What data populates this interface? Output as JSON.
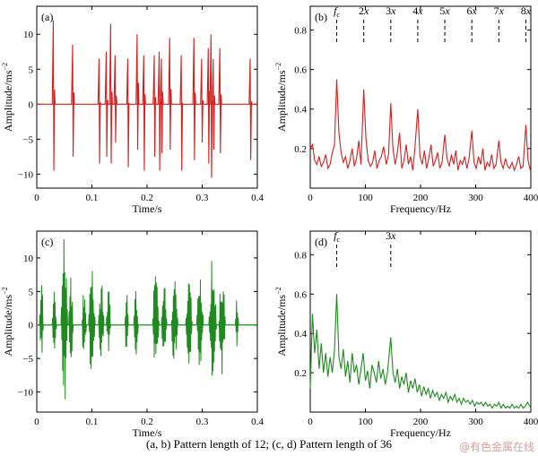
{
  "caption": "(a, b) Pattern length of 12; (c, d) Pattern length of 36",
  "watermark": "@有色金属在线",
  "colors": {
    "red": "#d42020",
    "green": "#1f8a1f"
  },
  "chart_data": [
    {
      "id": "a",
      "type": "line",
      "panel_label": "(a)",
      "xlabel": "Time/s",
      "ylabel": "Amplitude/ms",
      "ylabel_sup": "−2",
      "xlim": [
        0,
        0.4
      ],
      "ylim": [
        -12,
        14
      ],
      "xticks": [
        0,
        0.1,
        0.2,
        0.3,
        0.4
      ],
      "xtick_labels": [
        "0",
        "0.1",
        "0.2",
        "0.3",
        "0.4"
      ],
      "yticks": [
        -10,
        -5,
        0,
        5,
        10
      ],
      "ytick_labels": [
        "−10",
        "−5",
        "0",
        "5",
        "10"
      ],
      "color": "red",
      "impulses": [
        {
          "t": 0.03,
          "up": 12,
          "down": -9.5
        },
        {
          "t": 0.065,
          "up": 8.5,
          "down": -7.5
        },
        {
          "t": 0.113,
          "up": 6.5,
          "down": -8.5
        },
        {
          "t": 0.126,
          "up": 7.5,
          "down": -7.5
        },
        {
          "t": 0.134,
          "up": 11.5,
          "down": -8.5
        },
        {
          "t": 0.142,
          "up": 7.0,
          "down": -5.5
        },
        {
          "t": 0.165,
          "up": 6.5,
          "down": -9.0
        },
        {
          "t": 0.182,
          "up": 10.0,
          "down": -6.5
        },
        {
          "t": 0.194,
          "up": 7.0,
          "down": -9.5
        },
        {
          "t": 0.213,
          "up": 7.0,
          "down": -7.5
        },
        {
          "t": 0.222,
          "up": 7.5,
          "down": -9.5
        },
        {
          "t": 0.226,
          "up": 6.5,
          "down": -7.0
        },
        {
          "t": 0.241,
          "up": 9.5,
          "down": -6.5
        },
        {
          "t": 0.262,
          "up": 7.0,
          "down": -9.5
        },
        {
          "t": 0.285,
          "up": 9.5,
          "down": -8.0
        },
        {
          "t": 0.299,
          "up": 6.5,
          "down": -5.5
        },
        {
          "t": 0.311,
          "up": 8.0,
          "down": -8.5
        },
        {
          "t": 0.316,
          "up": 10.0,
          "down": -10.5
        },
        {
          "t": 0.32,
          "up": 6.5,
          "down": -6.5
        },
        {
          "t": 0.332,
          "up": 8.0,
          "down": -7.0
        },
        {
          "t": 0.387,
          "up": 6.5,
          "down": -8.0
        }
      ]
    },
    {
      "id": "b",
      "type": "line",
      "panel_label": "(b)",
      "xlabel": "Frequency/Hz",
      "ylabel": "Amplitude/ms",
      "ylabel_sup": "−2",
      "xlim": [
        0,
        400
      ],
      "ylim": [
        0,
        0.92
      ],
      "xticks": [
        0,
        100,
        200,
        300,
        400
      ],
      "xtick_labels": [
        "0",
        "100",
        "200",
        "300",
        "400"
      ],
      "yticks": [
        0.2,
        0.4,
        0.6,
        0.8
      ],
      "ytick_labels": [
        "0.2",
        "0.4",
        "0.6",
        "0.8"
      ],
      "color": "red",
      "harmonics": [
        {
          "f": 48,
          "label": "fc"
        },
        {
          "f": 97,
          "label": "2x"
        },
        {
          "f": 146,
          "label": "3x"
        },
        {
          "f": 195,
          "label": "4x"
        },
        {
          "f": 244,
          "label": "5x"
        },
        {
          "f": 293,
          "label": "6x"
        },
        {
          "f": 342,
          "label": "7x"
        },
        {
          "f": 391,
          "label": "8x"
        }
      ],
      "points": [
        [
          0,
          0.2
        ],
        [
          4,
          0.22
        ],
        [
          8,
          0.14
        ],
        [
          12,
          0.12
        ],
        [
          16,
          0.16
        ],
        [
          20,
          0.11
        ],
        [
          24,
          0.13
        ],
        [
          28,
          0.17
        ],
        [
          32,
          0.1
        ],
        [
          36,
          0.12
        ],
        [
          40,
          0.18
        ],
        [
          44,
          0.22
        ],
        [
          48,
          0.55
        ],
        [
          52,
          0.28
        ],
        [
          56,
          0.18
        ],
        [
          60,
          0.13
        ],
        [
          64,
          0.16
        ],
        [
          68,
          0.1
        ],
        [
          72,
          0.14
        ],
        [
          76,
          0.2
        ],
        [
          80,
          0.11
        ],
        [
          84,
          0.15
        ],
        [
          88,
          0.24
        ],
        [
          92,
          0.12
        ],
        [
          97,
          0.5
        ],
        [
          101,
          0.25
        ],
        [
          105,
          0.14
        ],
        [
          109,
          0.11
        ],
        [
          113,
          0.13
        ],
        [
          117,
          0.19
        ],
        [
          121,
          0.1
        ],
        [
          125,
          0.14
        ],
        [
          129,
          0.16
        ],
        [
          133,
          0.21
        ],
        [
          138,
          0.12
        ],
        [
          142,
          0.17
        ],
        [
          146,
          0.43
        ],
        [
          150,
          0.2
        ],
        [
          154,
          0.12
        ],
        [
          158,
          0.18
        ],
        [
          162,
          0.28
        ],
        [
          166,
          0.1
        ],
        [
          170,
          0.14
        ],
        [
          174,
          0.22
        ],
        [
          178,
          0.12
        ],
        [
          182,
          0.16
        ],
        [
          186,
          0.09
        ],
        [
          190,
          0.21
        ],
        [
          195,
          0.4
        ],
        [
          199,
          0.16
        ],
        [
          203,
          0.12
        ],
        [
          207,
          0.19
        ],
        [
          211,
          0.1
        ],
        [
          215,
          0.15
        ],
        [
          219,
          0.22
        ],
        [
          223,
          0.11
        ],
        [
          227,
          0.14
        ],
        [
          231,
          0.18
        ],
        [
          235,
          0.1
        ],
        [
          239,
          0.13
        ],
        [
          244,
          0.27
        ],
        [
          248,
          0.15
        ],
        [
          252,
          0.11
        ],
        [
          256,
          0.17
        ],
        [
          260,
          0.12
        ],
        [
          264,
          0.19
        ],
        [
          268,
          0.09
        ],
        [
          272,
          0.14
        ],
        [
          276,
          0.12
        ],
        [
          280,
          0.16
        ],
        [
          284,
          0.1
        ],
        [
          288,
          0.15
        ],
        [
          293,
          0.29
        ],
        [
          297,
          0.13
        ],
        [
          301,
          0.1
        ],
        [
          305,
          0.16
        ],
        [
          309,
          0.12
        ],
        [
          313,
          0.2
        ],
        [
          317,
          0.09
        ],
        [
          321,
          0.13
        ],
        [
          325,
          0.11
        ],
        [
          329,
          0.17
        ],
        [
          333,
          0.1
        ],
        [
          337,
          0.12
        ],
        [
          342,
          0.24
        ],
        [
          346,
          0.13
        ],
        [
          350,
          0.1
        ],
        [
          354,
          0.15
        ],
        [
          358,
          0.11
        ],
        [
          362,
          0.1
        ],
        [
          366,
          0.13
        ],
        [
          370,
          0.09
        ],
        [
          374,
          0.12
        ],
        [
          378,
          0.16
        ],
        [
          382,
          0.1
        ],
        [
          386,
          0.11
        ],
        [
          391,
          0.32
        ],
        [
          395,
          0.14
        ],
        [
          400,
          0.08
        ]
      ]
    },
    {
      "id": "c",
      "type": "line",
      "panel_label": "(c)",
      "xlabel": "Time/s",
      "ylabel": "Amplitude/ms",
      "ylabel_sup": "−2",
      "xlim": [
        0,
        0.4
      ],
      "ylim": [
        -13,
        14
      ],
      "xticks": [
        0,
        0.1,
        0.2,
        0.3,
        0.4
      ],
      "xtick_labels": [
        "0",
        "0.1",
        "0.2",
        "0.3",
        "0.4"
      ],
      "yticks": [
        -10,
        -5,
        0,
        5,
        10
      ],
      "ytick_labels": [
        "−10",
        "−5",
        "0",
        "5",
        "10"
      ],
      "color": "green",
      "bursts": [
        {
          "t0": 0.005,
          "t1": 0.012,
          "amp": 7
        },
        {
          "t0": 0.028,
          "t1": 0.036,
          "amp": 6
        },
        {
          "t0": 0.044,
          "t1": 0.056,
          "amp": 13.5
        },
        {
          "t0": 0.058,
          "t1": 0.066,
          "amp": 8
        },
        {
          "t0": 0.082,
          "t1": 0.09,
          "amp": 7
        },
        {
          "t0": 0.094,
          "t1": 0.106,
          "amp": 9
        },
        {
          "t0": 0.112,
          "t1": 0.122,
          "amp": 7
        },
        {
          "t0": 0.126,
          "t1": 0.134,
          "amp": 6
        },
        {
          "t0": 0.16,
          "t1": 0.166,
          "amp": 6.5
        },
        {
          "t0": 0.176,
          "t1": 0.184,
          "amp": 5.5
        },
        {
          "t0": 0.21,
          "t1": 0.222,
          "amp": 9.5
        },
        {
          "t0": 0.226,
          "t1": 0.236,
          "amp": 7
        },
        {
          "t0": 0.244,
          "t1": 0.256,
          "amp": 8.5
        },
        {
          "t0": 0.27,
          "t1": 0.282,
          "amp": 7.5
        },
        {
          "t0": 0.29,
          "t1": 0.302,
          "amp": 8.5
        },
        {
          "t0": 0.312,
          "t1": 0.326,
          "amp": 10.5
        },
        {
          "t0": 0.33,
          "t1": 0.342,
          "amp": 8.5
        },
        {
          "t0": 0.36,
          "t1": 0.366,
          "amp": 4
        }
      ]
    },
    {
      "id": "d",
      "type": "line",
      "panel_label": "(d)",
      "xlabel": "Frequency/Hz",
      "ylabel": "Amplitude/ms",
      "ylabel_sup": "−2",
      "xlim": [
        0,
        400
      ],
      "ylim": [
        0,
        0.92
      ],
      "xticks": [
        0,
        100,
        200,
        300,
        400
      ],
      "xtick_labels": [
        "0",
        "100",
        "200",
        "300",
        "400"
      ],
      "yticks": [
        0.2,
        0.4,
        0.6,
        0.8
      ],
      "ytick_labels": [
        "0.2",
        "0.4",
        "0.6",
        "0.8"
      ],
      "color": "green",
      "harmonics": [
        {
          "f": 48,
          "label": "fc"
        },
        {
          "f": 146,
          "label": "3x"
        }
      ],
      "points": [
        [
          0,
          0.12
        ],
        [
          4,
          0.5
        ],
        [
          8,
          0.3
        ],
        [
          12,
          0.42
        ],
        [
          16,
          0.22
        ],
        [
          20,
          0.35
        ],
        [
          24,
          0.2
        ],
        [
          28,
          0.3
        ],
        [
          32,
          0.18
        ],
        [
          36,
          0.28
        ],
        [
          40,
          0.2
        ],
        [
          44,
          0.32
        ],
        [
          48,
          0.6
        ],
        [
          52,
          0.28
        ],
        [
          56,
          0.22
        ],
        [
          60,
          0.32
        ],
        [
          64,
          0.18
        ],
        [
          68,
          0.26
        ],
        [
          72,
          0.15
        ],
        [
          76,
          0.3
        ],
        [
          80,
          0.2
        ],
        [
          84,
          0.24
        ],
        [
          88,
          0.14
        ],
        [
          92,
          0.22
        ],
        [
          96,
          0.3
        ],
        [
          100,
          0.16
        ],
        [
          104,
          0.21
        ],
        [
          108,
          0.12
        ],
        [
          112,
          0.24
        ],
        [
          116,
          0.2
        ],
        [
          120,
          0.15
        ],
        [
          124,
          0.26
        ],
        [
          128,
          0.17
        ],
        [
          132,
          0.22
        ],
        [
          136,
          0.14
        ],
        [
          140,
          0.2
        ],
        [
          146,
          0.38
        ],
        [
          150,
          0.2
        ],
        [
          154,
          0.15
        ],
        [
          158,
          0.22
        ],
        [
          162,
          0.12
        ],
        [
          166,
          0.18
        ],
        [
          170,
          0.14
        ],
        [
          174,
          0.2
        ],
        [
          178,
          0.1
        ],
        [
          182,
          0.16
        ],
        [
          186,
          0.12
        ],
        [
          190,
          0.17
        ],
        [
          194,
          0.1
        ],
        [
          198,
          0.14
        ],
        [
          202,
          0.08
        ],
        [
          206,
          0.13
        ],
        [
          210,
          0.09
        ],
        [
          214,
          0.12
        ],
        [
          218,
          0.07
        ],
        [
          222,
          0.11
        ],
        [
          226,
          0.08
        ],
        [
          230,
          0.1
        ],
        [
          234,
          0.06
        ],
        [
          238,
          0.09
        ],
        [
          242,
          0.07
        ],
        [
          246,
          0.1
        ],
        [
          250,
          0.05
        ],
        [
          254,
          0.08
        ],
        [
          258,
          0.06
        ],
        [
          262,
          0.09
        ],
        [
          266,
          0.05
        ],
        [
          270,
          0.07
        ],
        [
          274,
          0.04
        ],
        [
          278,
          0.07
        ],
        [
          282,
          0.05
        ],
        [
          286,
          0.06
        ],
        [
          290,
          0.04
        ],
        [
          294,
          0.06
        ],
        [
          298,
          0.03
        ],
        [
          302,
          0.05
        ],
        [
          306,
          0.04
        ],
        [
          310,
          0.05
        ],
        [
          314,
          0.03
        ],
        [
          318,
          0.05
        ],
        [
          322,
          0.03
        ],
        [
          326,
          0.04
        ],
        [
          330,
          0.02
        ],
        [
          334,
          0.04
        ],
        [
          338,
          0.03
        ],
        [
          342,
          0.05
        ],
        [
          346,
          0.02
        ],
        [
          350,
          0.04
        ],
        [
          354,
          0.02
        ],
        [
          358,
          0.03
        ],
        [
          362,
          0.02
        ],
        [
          366,
          0.04
        ],
        [
          370,
          0.02
        ],
        [
          374,
          0.03
        ],
        [
          378,
          0.02
        ],
        [
          382,
          0.04
        ],
        [
          386,
          0.02
        ],
        [
          390,
          0.03
        ],
        [
          394,
          0.05
        ],
        [
          400,
          0.02
        ]
      ]
    }
  ]
}
